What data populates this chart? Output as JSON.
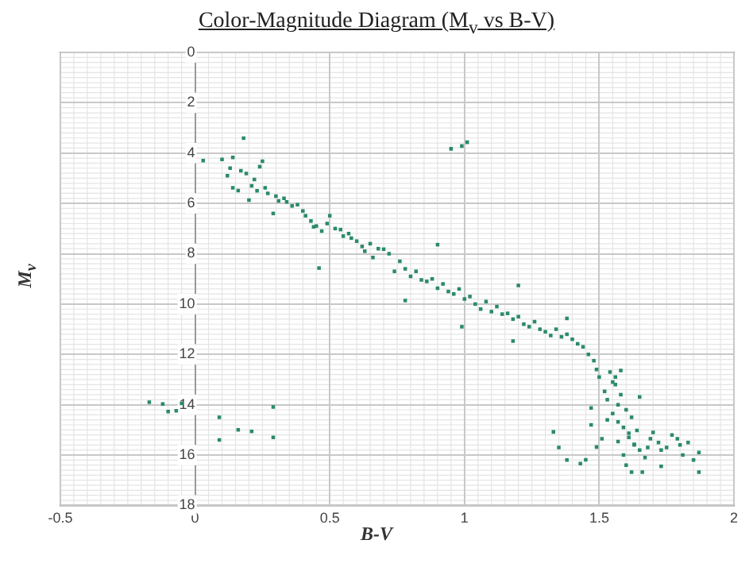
{
  "chart_data": {
    "type": "scatter",
    "title": "Color-Magnitude Diagram (M$_{v}$ vs B-V)",
    "xlabel": "B-V",
    "ylabel": "M$_{v}$",
    "xlim": [
      -0.5,
      2
    ],
    "xticks": [
      -0.5,
      0,
      0.5,
      1,
      1.5,
      2
    ],
    "ylim": [
      18,
      0
    ],
    "yticks": [
      0,
      2,
      4,
      6,
      8,
      10,
      12,
      14,
      16,
      18
    ],
    "grid": true,
    "marker": "square",
    "legend": false,
    "series": [
      {
        "color": "#2a8a6a",
        "x": [
          -0.17,
          -0.12,
          -0.1,
          -0.07,
          -0.05,
          0.09,
          0.09,
          0.16,
          0.21,
          0.29,
          0.29,
          0.95,
          0.99,
          1.01,
          0.18,
          0.46,
          0.29,
          0.03,
          0.12,
          0.14,
          0.16,
          0.19,
          0.2,
          0.24,
          0.25,
          0.22,
          0.26,
          0.3,
          0.34,
          0.38,
          0.41,
          0.44,
          0.5,
          0.54,
          0.58,
          0.62,
          0.66,
          0.7,
          0.14,
          0.1,
          0.13,
          0.17,
          0.21,
          0.23,
          0.27,
          0.31,
          0.33,
          0.36,
          0.4,
          0.43,
          0.45,
          0.47,
          0.49,
          0.52,
          0.55,
          0.57,
          0.6,
          0.63,
          0.65,
          0.68,
          0.72,
          0.74,
          0.76,
          0.78,
          0.8,
          0.82,
          0.84,
          0.86,
          0.88,
          0.9,
          0.92,
          0.94,
          0.96,
          0.98,
          1.0,
          1.02,
          1.04,
          1.06,
          1.08,
          1.1,
          1.12,
          1.14,
          1.16,
          1.18,
          1.2,
          1.22,
          1.24,
          1.26,
          1.28,
          1.3,
          1.32,
          1.34,
          1.36,
          1.38,
          1.4,
          1.42,
          1.44,
          1.46,
          1.48,
          0.9,
          0.99,
          1.2,
          1.58,
          0.78,
          1.18,
          1.38,
          1.5,
          1.53,
          1.47,
          1.57,
          1.61,
          1.64,
          1.63,
          1.69,
          1.73,
          1.73,
          1.79,
          1.81,
          1.87,
          1.87,
          1.66,
          1.62,
          1.65,
          1.47,
          1.51,
          1.49,
          1.57,
          1.59,
          1.55,
          1.52,
          1.33,
          1.35,
          1.38,
          1.43,
          1.45,
          1.54,
          1.56,
          1.58,
          1.6,
          1.62,
          1.55,
          1.57,
          1.59,
          1.61,
          1.63,
          1.65,
          1.67,
          1.7,
          1.72,
          1.75,
          1.77,
          1.8,
          1.83,
          1.85,
          1.68,
          1.6,
          1.53,
          1.56,
          1.49
        ],
        "values": [
          13.9,
          13.97,
          14.27,
          14.24,
          13.95,
          14.5,
          15.4,
          15.0,
          15.06,
          14.09,
          15.3,
          3.83,
          3.72,
          3.57,
          3.41,
          8.57,
          6.4,
          4.3,
          4.9,
          5.38,
          5.49,
          4.81,
          5.87,
          4.54,
          4.32,
          5.05,
          5.38,
          5.71,
          5.94,
          6.05,
          6.49,
          6.93,
          6.49,
          7.04,
          7.38,
          7.71,
          8.15,
          7.82,
          4.17,
          4.25,
          4.6,
          4.7,
          5.3,
          5.5,
          5.6,
          5.9,
          5.8,
          6.1,
          6.3,
          6.7,
          6.9,
          7.1,
          6.8,
          7.0,
          7.3,
          7.2,
          7.5,
          7.9,
          7.6,
          7.8,
          8.0,
          8.7,
          8.3,
          8.6,
          8.9,
          8.7,
          9.04,
          9.1,
          9.0,
          9.37,
          9.2,
          9.5,
          9.6,
          9.4,
          9.8,
          9.7,
          10.0,
          10.2,
          9.9,
          10.3,
          10.1,
          10.4,
          10.37,
          10.6,
          10.5,
          10.8,
          10.9,
          10.7,
          11.0,
          11.1,
          11.25,
          11.0,
          11.3,
          10.57,
          11.4,
          11.58,
          11.7,
          12.0,
          12.25,
          7.64,
          10.9,
          9.26,
          12.64,
          9.86,
          11.47,
          11.2,
          12.9,
          13.8,
          14.13,
          14.68,
          15.13,
          15.02,
          15.57,
          15.35,
          15.8,
          16.45,
          15.35,
          16.0,
          15.9,
          16.68,
          16.68,
          16.68,
          13.69,
          14.8,
          15.35,
          15.68,
          15.46,
          16.0,
          14.35,
          13.47,
          15.08,
          15.7,
          16.2,
          16.34,
          16.19,
          12.7,
          13.2,
          13.6,
          14.2,
          14.5,
          13.1,
          14.0,
          14.9,
          15.3,
          15.6,
          15.8,
          16.1,
          15.1,
          15.5,
          15.7,
          15.2,
          15.6,
          15.5,
          16.2,
          15.7,
          16.4,
          14.6,
          12.9,
          12.6
        ]
      }
    ]
  }
}
